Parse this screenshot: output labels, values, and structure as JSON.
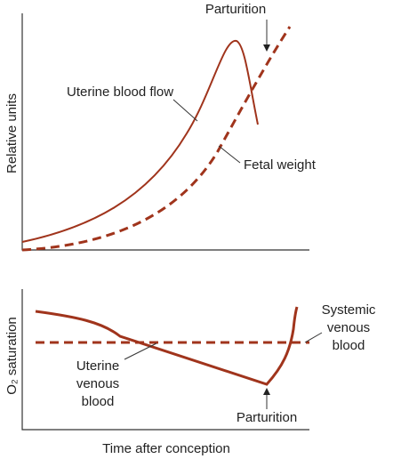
{
  "top_panel": {
    "y_axis_label": "Relative units",
    "curves": [
      {
        "label": "Uterine blood flow"
      },
      {
        "label": "Fetal weight"
      }
    ],
    "event_label": "Parturition"
  },
  "bottom_panel": {
    "y_axis_label": "O₂ saturation",
    "curves": [
      {
        "label_lines": [
          "Systemic",
          "venous",
          "blood"
        ]
      },
      {
        "label_lines": [
          "Uterine",
          "venous",
          "blood"
        ]
      }
    ],
    "event_label": "Parturition"
  },
  "x_axis_label": "Time after conception"
}
